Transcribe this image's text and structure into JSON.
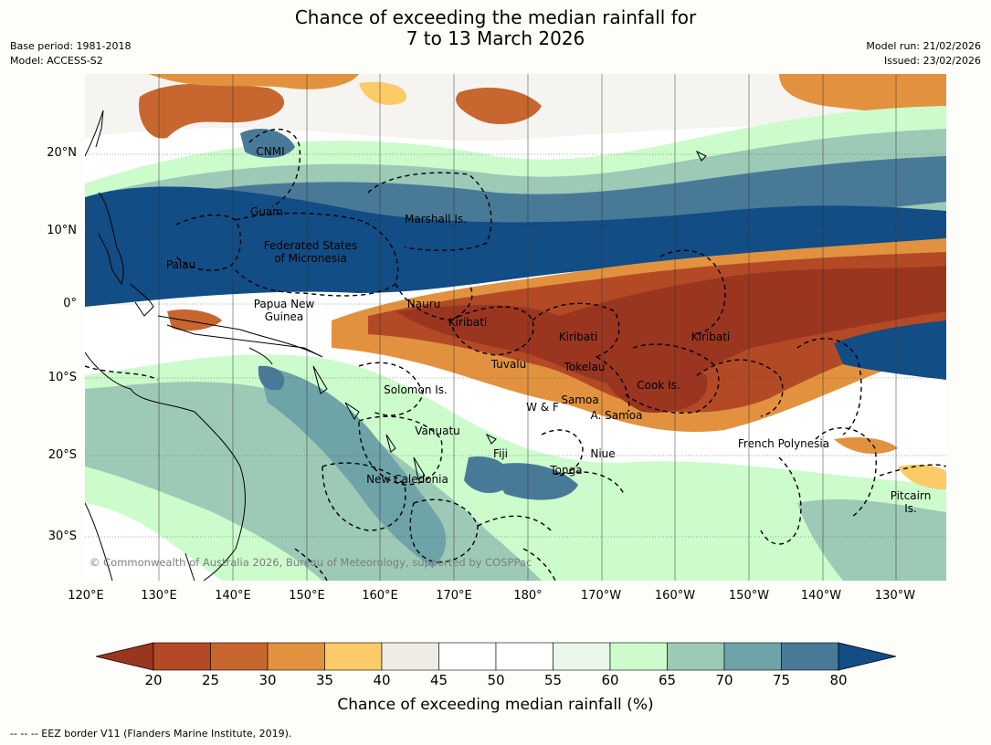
{
  "title_line1": "Chance of exceeding the median rainfall for",
  "title_line2": "7 to 13 March 2026",
  "base_period": "Base period: 1981-2018",
  "model": "Model: ACCESS-S2",
  "model_run": "Model run: 21/02/2026",
  "issued": "Issued: 23/02/2026",
  "lat_labels": [
    "20°N",
    "10°N",
    "0°",
    "10°S",
    "20°S",
    "30°S"
  ],
  "lon_labels": [
    "120°E",
    "130°E",
    "140°E",
    "150°E",
    "160°E",
    "170°E",
    "180°",
    "170°W",
    "160°W",
    "150°W",
    "140°W",
    "130°W"
  ],
  "regions": {
    "cnmi": "CNMI",
    "guam": "Guam",
    "marshall": "Marshall Is.",
    "fsm_1": "Federated States",
    "fsm_2": "of Micronesia",
    "palau": "Palau",
    "png_1": "Papua New",
    "png_2": "Guinea",
    "nauru": "Nauru",
    "kiribati_w": "Kiribati",
    "kiribati_c": "Kiribati",
    "kiribati_e": "Kiribati",
    "tuvalu": "Tuvalu",
    "tokelau": "Tokelau",
    "cook": "Cook Is.",
    "solomon": "Solomon Is.",
    "wf": "W & F",
    "samoa": "Samoa",
    "asamoa": "A. Samoa",
    "vanuatu": "Vanuatu",
    "fiji": "Fiji",
    "niue": "Niue",
    "tonga": "Tonga",
    "french_polynesia": "French Polynesia",
    "new_caledonia": "New Caledonia",
    "pitcairn_1": "Pitcairn",
    "pitcairn_2": "Is."
  },
  "copyright": "© Commonwealth of Australia 2026, Bureau of Meteorology, supported by COSPPac",
  "colorbar": {
    "ticks": [
      "20",
      "25",
      "30",
      "35",
      "40",
      "45",
      "50",
      "55",
      "60",
      "65",
      "70",
      "75",
      "80"
    ],
    "colors": [
      "#9a3520",
      "#b34a25",
      "#c8662f",
      "#e2923f",
      "#fbcb68",
      "#efece6",
      "#ffffff",
      "#ffffff",
      "#e9f6e9",
      "#ccfccc",
      "#9ccab7",
      "#6ea3a8",
      "#487a98",
      "#124d85"
    ],
    "label": "Chance of exceeding median rainfall (%)"
  },
  "eez_legend": "--  --  -- EEZ border V11 (Flanders Marine Institute, 2019)."
}
